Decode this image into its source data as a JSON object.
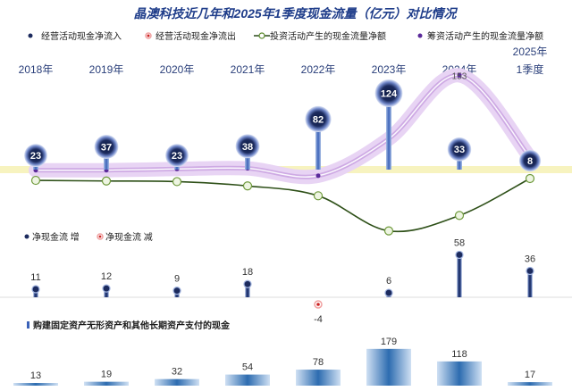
{
  "title": "晶澳科技近几年和2025年1季度现金流量（亿元）对比情况",
  "legend": {
    "operating_inflow": "经营活动现金净流入",
    "operating_outflow": "经营活动现金净流出",
    "investing": "投资活动产生的现金流量净额",
    "financing": "筹资活动产生的现金流量净额"
  },
  "net_legend": {
    "increase": "净现金流 增",
    "decrease": "净现金流 减"
  },
  "capex_legend": "购建固定资产无形资产和其他长期资产支付的现金",
  "colors": {
    "title": "#1f3d8a",
    "operating": "#1c2b5e",
    "operating_outflow": "#cc2222",
    "investing": "#5a8a2a",
    "financing": "#c9a0e0",
    "axis_band": "#f2ec9c",
    "capex": "#4a86c0"
  },
  "chart_data": {
    "type": "line",
    "categories": [
      "2018年",
      "2019年",
      "2020年",
      "2021年",
      "2022年",
      "2023年",
      "2024年",
      "2025年 1季度"
    ],
    "category_labels": [
      [
        "2018年"
      ],
      [
        "2019年"
      ],
      [
        "2020年"
      ],
      [
        "2021年"
      ],
      [
        "2022年"
      ],
      [
        "2023年"
      ],
      [
        "2024年"
      ],
      [
        "2025年",
        "1季度"
      ]
    ],
    "series": [
      {
        "name": "经营活动现金净流入",
        "values": [
          23,
          37,
          23,
          38,
          82,
          124,
          33,
          8
        ]
      },
      {
        "name": "投资活动产生的现金流量净额",
        "values": [
          -3,
          -4,
          -5,
          -12,
          -28,
          -85,
          -60,
          0
        ]
      },
      {
        "name": "筹资活动产生的现金流量净额",
        "values": [
          -1,
          -1,
          1,
          2,
          -10,
          50,
          153,
          20
        ]
      }
    ],
    "financing_labels": [
      "",
      "",
      "",
      "",
      "",
      "",
      "153",
      ""
    ],
    "net_cash_flow": {
      "values": [
        11,
        12,
        9,
        18,
        -4,
        6,
        58,
        36
      ],
      "labels": [
        "11",
        "12",
        "9",
        "18",
        "-4",
        "6",
        "58",
        "36"
      ]
    },
    "capex": {
      "values": [
        13,
        19,
        32,
        54,
        78,
        179,
        118,
        17
      ],
      "labels": [
        "13",
        "19",
        "32",
        "54",
        "78",
        "179",
        "118",
        "17"
      ]
    }
  }
}
